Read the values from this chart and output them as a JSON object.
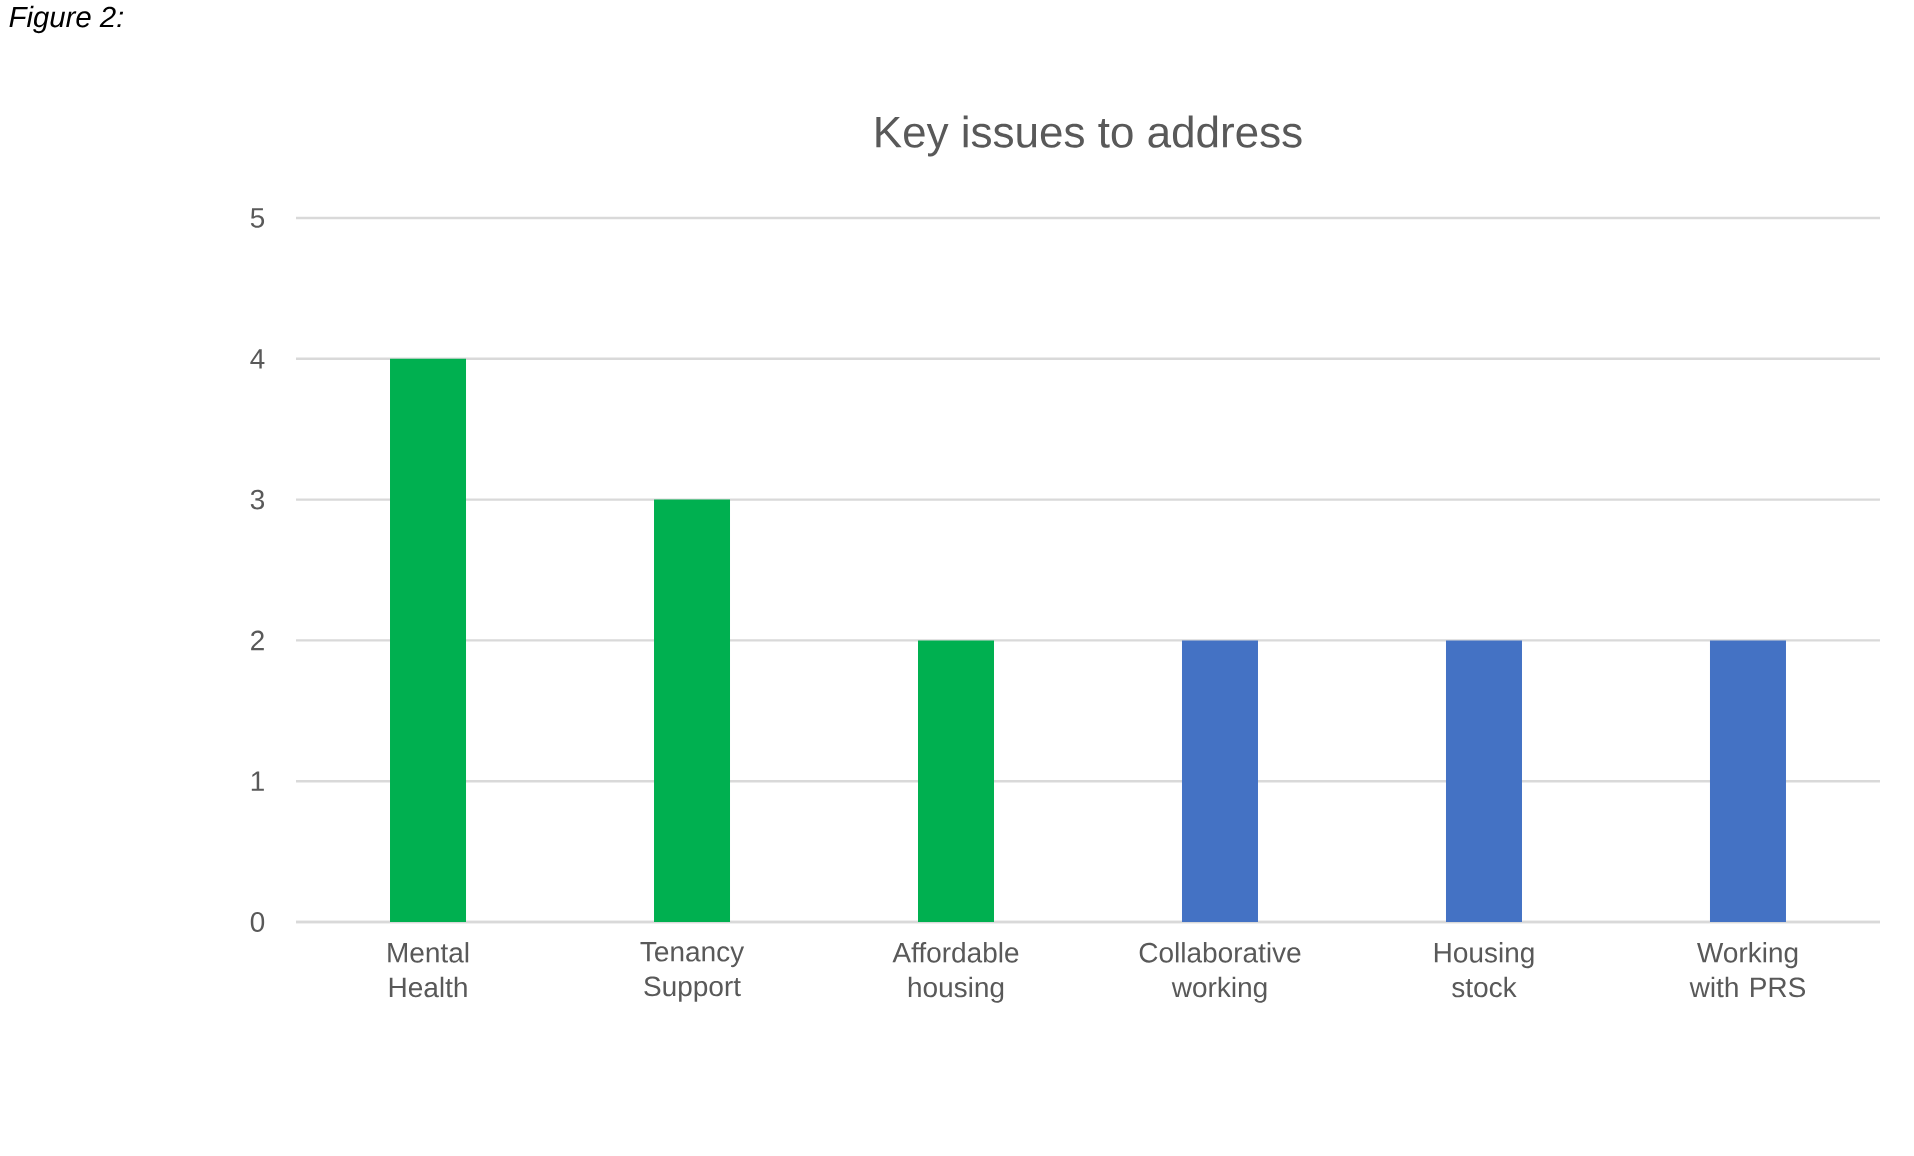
{
  "chart_data": {
    "type": "bar",
    "title": "Key issues to address",
    "categories": [
      "Mental Health",
      "Tenancy Support",
      "Affordable housing",
      "Collaborative working",
      "Housing stock",
      "Working with PRS"
    ],
    "values": [
      4,
      3,
      2,
      2,
      2,
      2
    ],
    "colors": [
      "#00b050",
      "#00b050",
      "#00b050",
      "#4472c4",
      "#4472c4",
      "#4472c4"
    ],
    "ylim": [
      0,
      5
    ],
    "yticks": [
      0,
      1,
      2,
      3,
      4,
      5
    ],
    "grid": "y",
    "annotations": [
      "Figure 2:"
    ]
  }
}
